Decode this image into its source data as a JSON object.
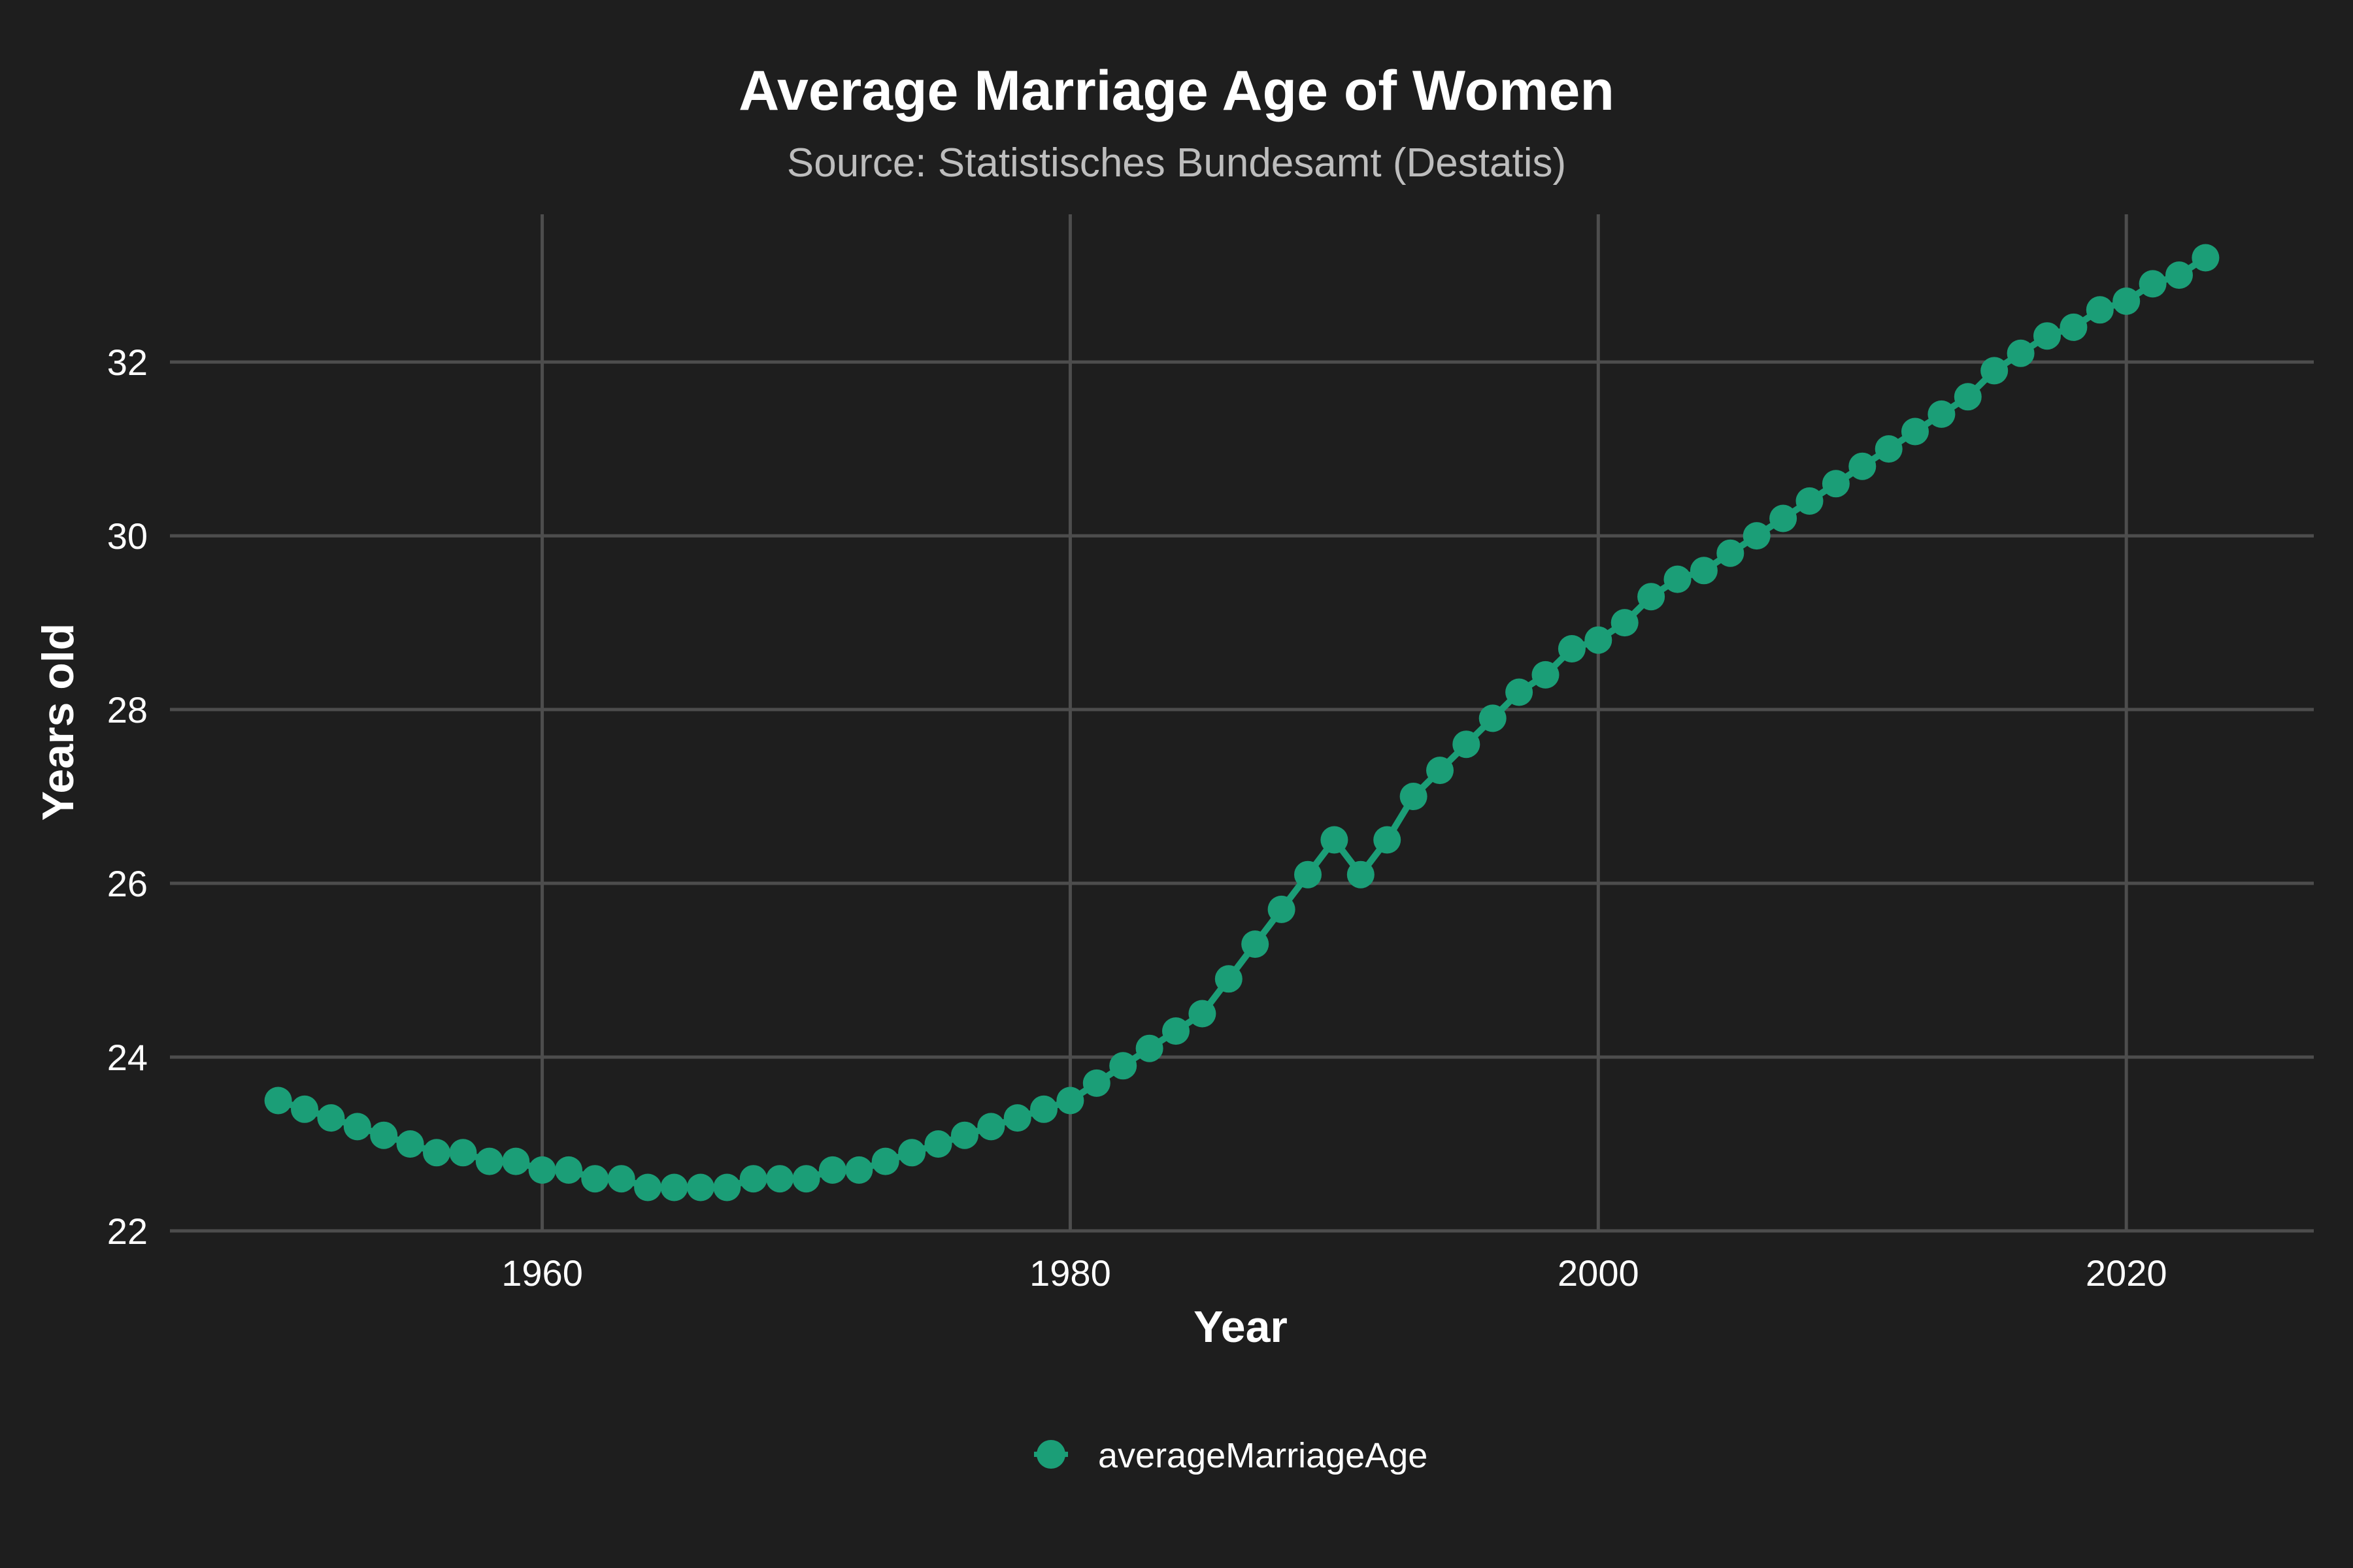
{
  "chart_data": {
    "type": "line",
    "title": "Average Marriage Age of Women",
    "subtitle": "Source: Statistisches Bundesamt (Destatis)",
    "xlabel": "Year",
    "ylabel": "Years old",
    "xlim": [
      1945.9,
      2027.1
    ],
    "ylim": [
      22,
      33.7
    ],
    "x_ticks": [
      1960,
      1980,
      2000,
      2020
    ],
    "y_ticks": [
      22,
      24,
      26,
      28,
      30,
      32
    ],
    "grid": true,
    "legend_position": "bottom",
    "series_color": "#1b9e77",
    "x": [
      1950,
      1951,
      1952,
      1953,
      1954,
      1955,
      1956,
      1957,
      1958,
      1959,
      1960,
      1961,
      1962,
      1963,
      1964,
      1965,
      1966,
      1967,
      1968,
      1969,
      1970,
      1971,
      1972,
      1973,
      1974,
      1975,
      1976,
      1977,
      1978,
      1979,
      1980,
      1981,
      1982,
      1983,
      1984,
      1985,
      1986,
      1987,
      1988,
      1989,
      1990,
      1991,
      1992,
      1993,
      1994,
      1995,
      1996,
      1997,
      1998,
      1999,
      2000,
      2001,
      2002,
      2003,
      2004,
      2005,
      2006,
      2007,
      2008,
      2009,
      2010,
      2011,
      2012,
      2013,
      2014,
      2015,
      2016,
      2017,
      2018,
      2019,
      2020,
      2021,
      2022,
      2023
    ],
    "series": [
      {
        "name": "averageMarriageAge",
        "values": [
          23.5,
          23.4,
          23.3,
          23.2,
          23.1,
          23.0,
          22.9,
          22.9,
          22.8,
          22.8,
          22.7,
          22.7,
          22.6,
          22.6,
          22.5,
          22.5,
          22.5,
          22.5,
          22.6,
          22.6,
          22.6,
          22.7,
          22.7,
          22.8,
          22.9,
          23.0,
          23.1,
          23.2,
          23.3,
          23.4,
          23.5,
          23.7,
          23.9,
          24.1,
          24.3,
          24.5,
          24.9,
          25.3,
          25.7,
          26.1,
          26.5,
          26.1,
          26.5,
          27.0,
          27.3,
          27.6,
          27.9,
          28.2,
          28.4,
          28.7,
          28.8,
          29.0,
          29.3,
          29.5,
          29.6,
          29.8,
          30.0,
          30.2,
          30.4,
          30.6,
          30.8,
          31.0,
          31.2,
          31.4,
          31.6,
          31.9,
          32.1,
          32.3,
          32.4,
          32.6,
          32.7,
          32.9,
          33.0,
          33.2
        ]
      }
    ]
  }
}
